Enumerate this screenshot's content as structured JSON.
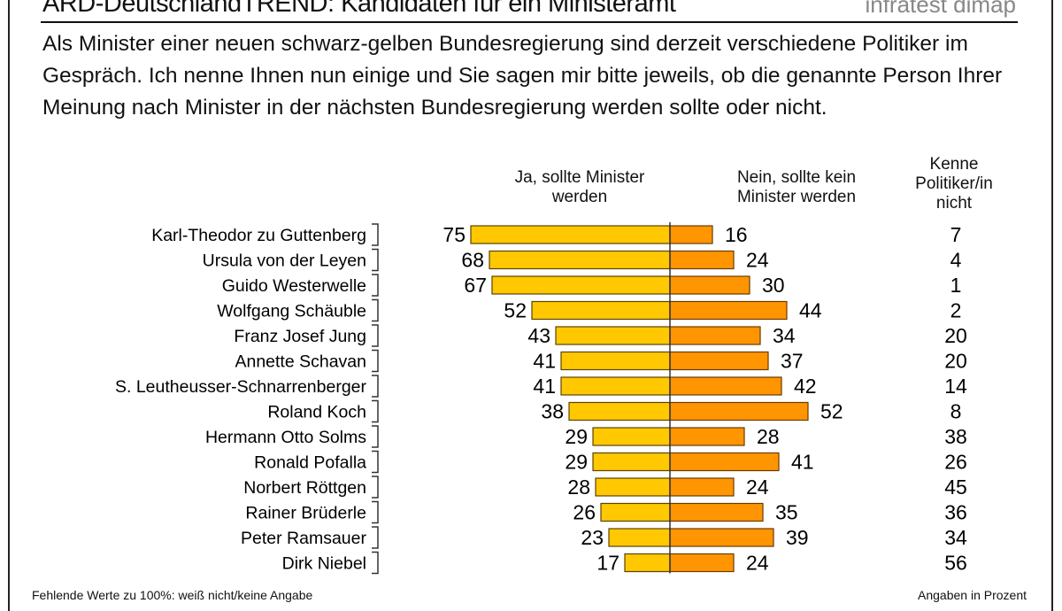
{
  "header": {
    "title": "ARD-DeutschlandTREND: Kandidaten für ein Ministeramt",
    "brand": "infratest dimap"
  },
  "question": "Als Minister einer neuen schwarz-gelben Bundesregierung sind derzeit verschiedene Politiker im Gespräch. Ich nenne Ihnen nun einige und Sie sagen mir bitte jeweils, ob die genannte Person Ihrer Meinung nach Minister in der nächsten Bundesregierung werden sollte oder nicht.",
  "columns": {
    "yes": [
      "Ja, sollte Minister",
      "werden"
    ],
    "no": [
      "Nein, sollte kein",
      "Minister werden"
    ],
    "unknown": [
      "Kenne",
      "Politiker/in",
      "nicht"
    ]
  },
  "footer": {
    "left": "Fehlende Werte zu 100%: weiß nicht/keine Angabe",
    "right": "Angaben in Prozent"
  },
  "chart_data": {
    "type": "bar",
    "orientation": "horizontal-diverging",
    "categories": [
      "Karl-Theodor zu Guttenberg",
      "Ursula von der Leyen",
      "Guido Westerwelle",
      "Wolfgang Schäuble",
      "Franz Josef Jung",
      "Annette Schavan",
      "S. Leutheusser-Schnarrenberger",
      "Roland Koch",
      "Hermann Otto Solms",
      "Ronald Pofalla",
      "Norbert Röttgen",
      "Rainer Brüderle",
      "Peter Ramsauer",
      "Dirk Niebel"
    ],
    "series": [
      {
        "name": "Ja, sollte Minister werden",
        "color": "#FFC800",
        "values": [
          75,
          68,
          67,
          52,
          43,
          41,
          41,
          38,
          29,
          29,
          28,
          26,
          23,
          17
        ]
      },
      {
        "name": "Nein, sollte kein Minister werden",
        "color": "#FF9500",
        "values": [
          16,
          24,
          30,
          44,
          34,
          37,
          42,
          52,
          28,
          41,
          24,
          35,
          39,
          24
        ]
      },
      {
        "name": "Kenne Politiker/in nicht",
        "values": [
          7,
          4,
          1,
          2,
          20,
          20,
          14,
          8,
          38,
          26,
          45,
          36,
          34,
          56
        ]
      }
    ],
    "unit": "Prozent"
  }
}
